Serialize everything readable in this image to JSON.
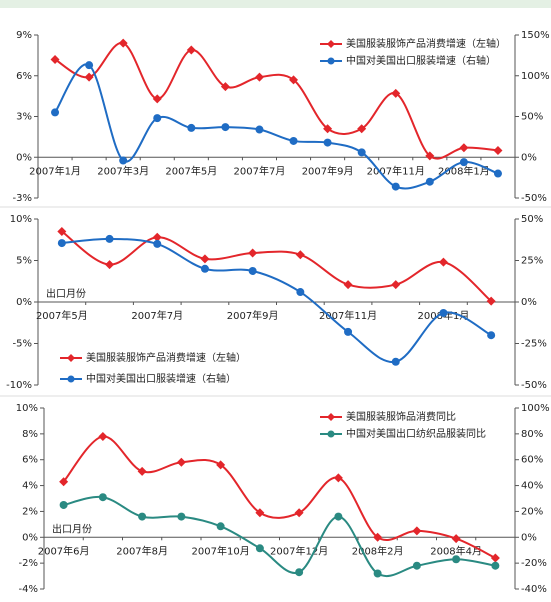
{
  "chart_data": [
    {
      "type": "line",
      "categories": [
        "2007年1月",
        null,
        "2007年3月",
        null,
        "2007年5月",
        null,
        "2007年7月",
        null,
        "2007年9月",
        null,
        "2007年11月",
        null,
        "2008年1月",
        null
      ],
      "series": [
        {
          "name": "美国服装服饰产品消费增速（左轴）",
          "color": "#e3262b",
          "marker": "diamond",
          "axis": "y",
          "values": [
            7.2,
            5.9,
            8.4,
            4.3,
            7.9,
            5.2,
            5.9,
            5.7,
            2.1,
            2.1,
            4.7,
            0.1,
            0.7,
            0.5
          ]
        },
        {
          "name": "中国对美国出口服装增速（右轴）",
          "color": "#1f6cc4",
          "marker": "circle",
          "axis": "y2",
          "values": [
            55,
            113,
            -4,
            48,
            36,
            37,
            34,
            20,
            18,
            6,
            -36,
            -30,
            -6,
            -20
          ]
        }
      ],
      "ylim": [
        -3,
        9
      ],
      "yticks": [
        {
          "value": -3,
          "label": "-3%"
        },
        {
          "value": 0,
          "label": "0%"
        },
        {
          "value": 3,
          "label": "3%"
        },
        {
          "value": 6,
          "label": "6%"
        },
        {
          "value": 9,
          "label": "9%"
        }
      ],
      "y2lim": [
        -50,
        150
      ],
      "y2ticks": [
        {
          "value": -50,
          "label": "-50%"
        },
        {
          "value": 0,
          "label": "0%"
        },
        {
          "value": 50,
          "label": "50%"
        },
        {
          "value": 100,
          "label": "100%"
        },
        {
          "value": 150,
          "label": "150%"
        }
      ],
      "legend": "upper right"
    },
    {
      "type": "line",
      "categories": [
        "2007年5月",
        null,
        "2007年7月",
        null,
        "2007年9月",
        null,
        "2007年11月",
        null,
        "2008年1月",
        null
      ],
      "series": [
        {
          "name": "美国服装服饰产品消费增速（左轴）",
          "color": "#e3262b",
          "marker": "diamond",
          "axis": "y",
          "values": [
            8.5,
            4.5,
            7.8,
            5.2,
            5.9,
            5.7,
            2.1,
            2.1,
            4.8,
            0.1
          ]
        },
        {
          "name": "中国对美国出口服装增速（右轴）",
          "color": "#1f6cc4",
          "marker": "circle",
          "axis": "y2",
          "values": [
            35.5,
            38,
            35,
            20,
            18.7,
            6,
            -18,
            -36,
            -6.6,
            -20
          ]
        }
      ],
      "ylim": [
        -10,
        10
      ],
      "yticks": [
        {
          "value": -10,
          "label": "-10%"
        },
        {
          "value": -5,
          "label": "-5%"
        },
        {
          "value": 0,
          "label": "0%"
        },
        {
          "value": 5,
          "label": "5%"
        },
        {
          "value": 10,
          "label": "10%"
        }
      ],
      "y2lim": [
        -50,
        50
      ],
      "y2ticks": [
        {
          "value": -50,
          "label": "-50%"
        },
        {
          "value": -25,
          "label": "-25%"
        },
        {
          "value": 0,
          "label": "0%"
        },
        {
          "value": 25,
          "label": "25%"
        },
        {
          "value": 50,
          "label": "50%"
        }
      ],
      "annotation": "出口月份",
      "legend": "lower left"
    },
    {
      "type": "line",
      "categories": [
        "2007年6月",
        null,
        "2007年8月",
        null,
        "2007年10月",
        null,
        "2007年12月",
        null,
        "2008年2月",
        null,
        "2008年4月",
        null
      ],
      "series": [
        {
          "name": "美国服装服饰品消费同比",
          "color": "#e3262b",
          "marker": "diamond",
          "axis": "y",
          "values": [
            4.3,
            7.8,
            5.1,
            5.8,
            5.6,
            1.9,
            1.9,
            4.6,
            0,
            0.5,
            -0.1,
            -1.6
          ]
        },
        {
          "name": "中国对美国出口纺织品服装同比",
          "color": "#2a8a82",
          "marker": "circle",
          "axis": "y2",
          "values": [
            25,
            31,
            16,
            16,
            8.5,
            -8.5,
            -27,
            16,
            -28,
            -22,
            -17,
            -22
          ]
        }
      ],
      "ylim": [
        -4,
        10
      ],
      "yticks": [
        {
          "value": -4,
          "label": "-4%"
        },
        {
          "value": -2,
          "label": "-2%"
        },
        {
          "value": 0,
          "label": "0%"
        },
        {
          "value": 2,
          "label": "2%"
        },
        {
          "value": 4,
          "label": "4%"
        },
        {
          "value": 6,
          "label": "6%"
        },
        {
          "value": 8,
          "label": "8%"
        },
        {
          "value": 10,
          "label": "10%"
        }
      ],
      "y2lim": [
        -40,
        100
      ],
      "y2ticks": [
        {
          "value": -40,
          "label": "-40%"
        },
        {
          "value": -20,
          "label": "-20%"
        },
        {
          "value": 0,
          "label": "0%"
        },
        {
          "value": 20,
          "label": "20%"
        },
        {
          "value": 40,
          "label": "40%"
        },
        {
          "value": 60,
          "label": "60%"
        },
        {
          "value": 80,
          "label": "80%"
        },
        {
          "value": 100,
          "label": "100%"
        }
      ],
      "annotation": "出口月份",
      "legend": "upper right"
    }
  ]
}
